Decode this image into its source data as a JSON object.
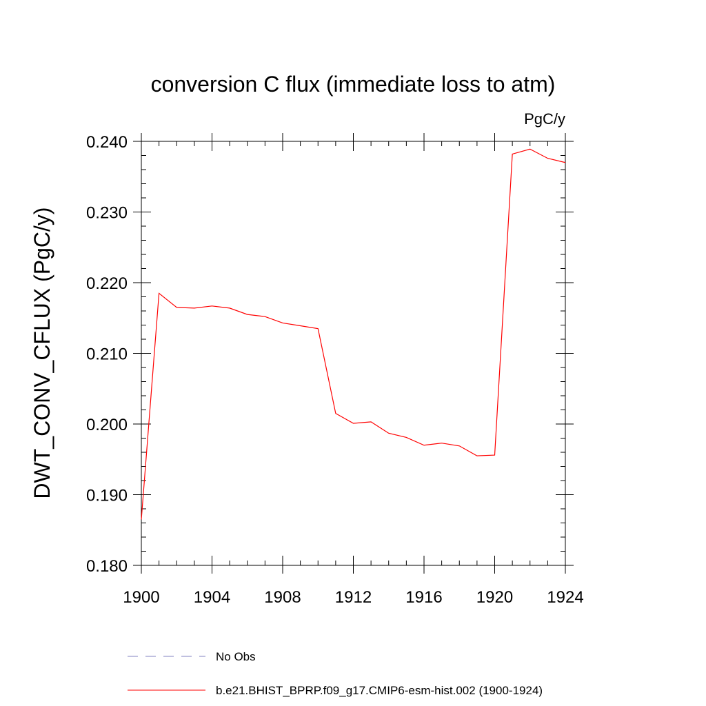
{
  "chart_data": {
    "type": "line",
    "title": "conversion C flux (immediate loss to atm)",
    "units_label": "PgC/y",
    "ylabel": "DWT_CONV_CFLUX  (PgC/y)",
    "xlabel": "",
    "xlim": [
      1900,
      1924
    ],
    "ylim": [
      0.18,
      0.24
    ],
    "x_ticks": [
      1900,
      1904,
      1908,
      1912,
      1916,
      1920,
      1924
    ],
    "x_tick_labels": [
      "1900",
      "1904",
      "1908",
      "1912",
      "1916",
      "1920",
      "1924"
    ],
    "y_ticks": [
      0.18,
      0.19,
      0.2,
      0.21,
      0.22,
      0.23,
      0.24
    ],
    "y_tick_labels": [
      "0.180",
      "0.190",
      "0.200",
      "0.210",
      "0.220",
      "0.230",
      "0.240"
    ],
    "grid": false,
    "legend_position": "bottom",
    "series": [
      {
        "name": "b.e21.BHIST_BPRP.f09_g17.CMIP6-esm-hist.002 (1900-1924)",
        "color": "#ff0000",
        "style": "solid",
        "x": [
          1900,
          1901,
          1902,
          1903,
          1904,
          1905,
          1906,
          1907,
          1908,
          1909,
          1910,
          1911,
          1912,
          1913,
          1914,
          1915,
          1916,
          1917,
          1918,
          1919,
          1920,
          1921,
          1922,
          1923,
          1924
        ],
        "y": [
          0.1865,
          0.2185,
          0.2165,
          0.2164,
          0.2167,
          0.2164,
          0.2155,
          0.2152,
          0.2143,
          0.2139,
          0.2135,
          0.2015,
          0.2001,
          0.2003,
          0.1987,
          0.1981,
          0.197,
          0.1973,
          0.1969,
          0.1955,
          0.1956,
          0.2382,
          0.2389,
          0.2376,
          0.237
        ]
      }
    ],
    "legend": [
      {
        "label": "No Obs",
        "color": "#8080c0",
        "style": "dashed"
      },
      {
        "label": "b.e21.BHIST_BPRP.f09_g17.CMIP6-esm-hist.002 (1900-1924)",
        "color": "#ff0000",
        "style": "solid"
      }
    ]
  }
}
